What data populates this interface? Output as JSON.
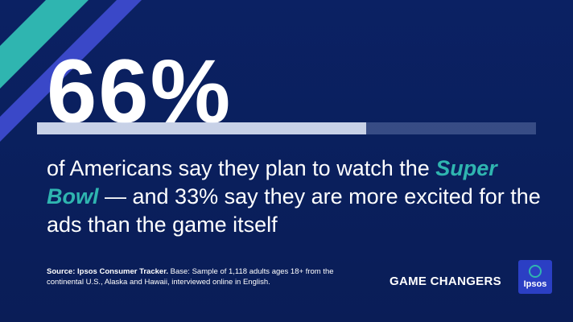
{
  "headline": {
    "stat": "66%"
  },
  "progress": {
    "fraction": 0.66
  },
  "body": {
    "line_before_accent": "of Americans say they plan to watch the ",
    "accent_text": "Super Bowl",
    "line_after_accent": " — and 33% say they are more excited for the ads than the game itself"
  },
  "source": {
    "label": "Source: Ipsos Consumer Tracker.",
    "text": " Base: Sample of 1,118 adults ages 18+ from the continental U.S., Alaska and Hawaii, interviewed online in English."
  },
  "brand": {
    "series_label": "GAME CHANGERS",
    "logo_text": "Ipsos"
  },
  "colors": {
    "background": "#0a1f5c",
    "teal_accent": "#2fb5b0",
    "indigo_stripe": "#3a48c8",
    "logo_bg": "#2b3fc4"
  },
  "icons": {
    "logo": "ipsos-logo-icon",
    "stripes": "diagonal-stripes-decoration"
  }
}
